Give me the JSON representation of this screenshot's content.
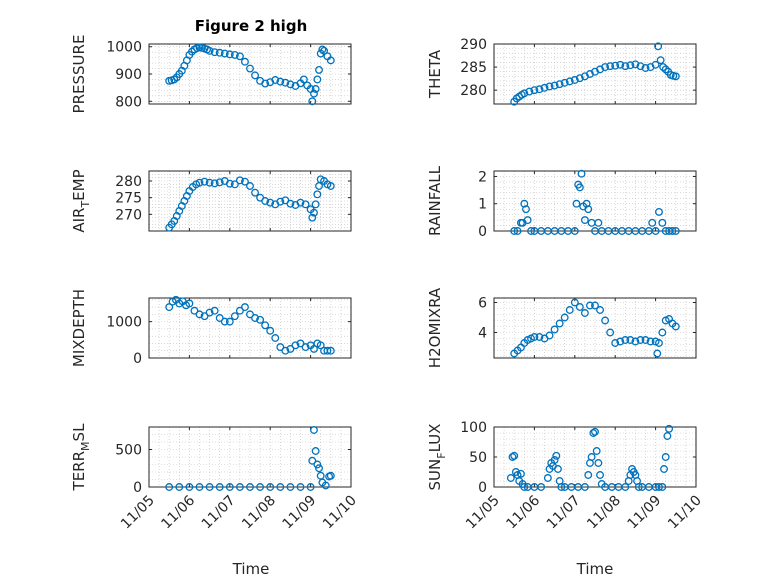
{
  "title": "Figure 2 high",
  "x_axis_label": "Time",
  "x_tick_labels": [
    "11/05",
    "11/06",
    "11/07",
    "11/08",
    "11/09",
    "11/10"
  ],
  "x_tick_days": [
    5,
    6,
    7,
    8,
    9,
    10
  ],
  "colors": {
    "marker": "#0072BD",
    "axis": "#262626",
    "grid": "#bfbfbf"
  },
  "chart_data": [
    {
      "type": "scatter",
      "id": "pressure",
      "ylabel": "PRESSURE",
      "xlim": [
        "11/05",
        "11/10"
      ],
      "ylim": [
        790,
        1010
      ],
      "yticks": [
        800,
        900,
        1000
      ],
      "grid": true,
      "x": [
        "11/05 12:00",
        "11/05 13:30",
        "11/05 15:00",
        "11/05 16:30",
        "11/05 18:00",
        "11/05 19:30",
        "11/05 21:00",
        "11/05 22:30",
        "11/06 00:00",
        "11/06 01:30",
        "11/06 03:00",
        "11/06 04:30",
        "11/06 06:00",
        "11/06 07:30",
        "11/06 09:00",
        "11/06 10:30",
        "11/06 12:00",
        "11/06 15:00",
        "11/06 18:00",
        "11/06 21:00",
        "11/07 00:00",
        "11/07 03:00",
        "11/07 06:00",
        "11/07 09:00",
        "11/07 12:00",
        "11/07 15:00",
        "11/07 18:00",
        "11/07 21:00",
        "11/08 00:00",
        "11/08 03:00",
        "11/08 06:00",
        "11/08 09:00",
        "11/08 12:00",
        "11/08 15:00",
        "11/08 18:00",
        "11/08 20:00",
        "11/08 22:00",
        "11/09 00:00",
        "11/09 01:00",
        "11/09 02:00",
        "11/09 03:00",
        "11/09 04:00",
        "11/09 05:00",
        "11/09 06:00",
        "11/09 07:00",
        "11/09 08:00",
        "11/09 10:00",
        "11/09 12:00"
      ],
      "y": [
        875,
        877,
        880,
        888,
        900,
        912,
        930,
        950,
        970,
        982,
        990,
        995,
        997,
        996,
        993,
        990,
        985,
        980,
        978,
        975,
        972,
        970,
        965,
        945,
        920,
        895,
        875,
        865,
        870,
        878,
        872,
        868,
        862,
        856,
        866,
        880,
        858,
        845,
        800,
        828,
        845,
        880,
        915,
        975,
        990,
        985,
        965,
        950
      ]
    },
    {
      "type": "scatter",
      "id": "theta",
      "ylabel": "THETA",
      "xlim": [
        "11/05",
        "11/10"
      ],
      "ylim": [
        277,
        290
      ],
      "yticks": [
        280,
        285,
        290
      ],
      "grid": true,
      "x": [
        "11/05 12:00",
        "11/05 13:30",
        "11/05 15:00",
        "11/05 16:30",
        "11/05 18:00",
        "11/05 21:00",
        "11/06 00:00",
        "11/06 03:00",
        "11/06 06:00",
        "11/06 09:00",
        "11/06 12:00",
        "11/06 15:00",
        "11/06 18:00",
        "11/06 21:00",
        "11/07 00:00",
        "11/07 03:00",
        "11/07 06:00",
        "11/07 09:00",
        "11/07 12:00",
        "11/07 15:00",
        "11/07 18:00",
        "11/07 21:00",
        "11/08 00:00",
        "11/08 03:00",
        "11/08 06:00",
        "11/08 09:00",
        "11/08 12:00",
        "11/08 15:00",
        "11/08 18:00",
        "11/08 21:00",
        "11/09 00:00",
        "11/09 01:30",
        "11/09 03:00",
        "11/09 04:30",
        "11/09 06:00",
        "11/09 07:30",
        "11/09 09:00",
        "11/09 10:30",
        "11/09 12:00"
      ],
      "y": [
        277.5,
        278.2,
        278.6,
        279.0,
        279.3,
        279.7,
        280.0,
        280.2,
        280.5,
        280.8,
        281.0,
        281.3,
        281.6,
        281.9,
        282.2,
        282.6,
        283.0,
        283.5,
        284.0,
        284.5,
        285.0,
        285.2,
        285.3,
        285.5,
        285.2,
        285.4,
        285.6,
        285.2,
        284.8,
        285.0,
        285.5,
        289.5,
        286.5,
        285.0,
        284.5,
        284.0,
        283.3,
        283.1,
        283.0
      ]
    },
    {
      "type": "scatter",
      "id": "air_temp",
      "ylabel": "AIR_TEMP",
      "xlim": [
        "11/05",
        "11/10"
      ],
      "ylim": [
        265,
        283
      ],
      "yticks": [
        270,
        275,
        280
      ],
      "grid": true,
      "x": [
        "11/05 12:00",
        "11/05 13:30",
        "11/05 15:00",
        "11/05 16:30",
        "11/05 18:00",
        "11/05 19:30",
        "11/05 21:00",
        "11/05 22:30",
        "11/06 00:00",
        "11/06 02:00",
        "11/06 04:00",
        "11/06 06:00",
        "11/06 09:00",
        "11/06 12:00",
        "11/06 15:00",
        "11/06 18:00",
        "11/06 21:00",
        "11/07 00:00",
        "11/07 03:00",
        "11/07 06:00",
        "11/07 09:00",
        "11/07 12:00",
        "11/07 15:00",
        "11/07 18:00",
        "11/07 21:00",
        "11/08 00:00",
        "11/08 03:00",
        "11/08 06:00",
        "11/08 09:00",
        "11/08 12:00",
        "11/08 15:00",
        "11/08 18:00",
        "11/08 21:00",
        "11/09 00:00",
        "11/09 01:00",
        "11/09 02:00",
        "11/09 03:00",
        "11/09 04:00",
        "11/09 05:00",
        "11/09 06:00",
        "11/09 08:00",
        "11/09 10:00",
        "11/09 12:00"
      ],
      "y": [
        266.0,
        267.0,
        268.0,
        269.5,
        271.0,
        272.5,
        274.0,
        275.5,
        277.0,
        278.2,
        279.0,
        279.5,
        279.8,
        279.5,
        279.3,
        279.6,
        280.0,
        279.2,
        279.0,
        280.2,
        279.8,
        278.5,
        276.5,
        275.0,
        274.0,
        273.5,
        273.0,
        273.8,
        274.2,
        273.2,
        272.8,
        273.5,
        273.0,
        271.5,
        269.0,
        270.5,
        273.0,
        276.0,
        278.5,
        280.5,
        280.0,
        279.0,
        278.5
      ]
    },
    {
      "type": "scatter",
      "id": "rainfall",
      "ylabel": "RAINFALL",
      "xlim": [
        "11/05",
        "11/10"
      ],
      "ylim": [
        0,
        2.2
      ],
      "yticks": [
        0,
        1,
        2
      ],
      "grid": true,
      "x": [
        "11/05 12:00",
        "11/05 14:00",
        "11/05 16:00",
        "11/05 17:00",
        "11/05 18:00",
        "11/05 19:00",
        "11/05 20:00",
        "11/05 22:00",
        "11/06 00:00",
        "11/06 04:00",
        "11/06 08:00",
        "11/06 12:00",
        "11/06 16:00",
        "11/06 20:00",
        "11/07 00:00",
        "11/07 01:00",
        "11/07 02:00",
        "11/07 03:00",
        "11/07 04:00",
        "11/07 05:00",
        "11/07 06:00",
        "11/07 07:00",
        "11/07 08:00",
        "11/07 10:00",
        "11/07 12:00",
        "11/07 14:00",
        "11/07 16:00",
        "11/07 20:00",
        "11/08 00:00",
        "11/08 04:00",
        "11/08 08:00",
        "11/08 12:00",
        "11/08 16:00",
        "11/08 20:00",
        "11/08 22:00",
        "11/09 00:00",
        "11/09 02:00",
        "11/09 04:00",
        "11/09 06:00",
        "11/09 08:00",
        "11/09 10:00",
        "11/09 12:00"
      ],
      "y": [
        0,
        0,
        0.3,
        0.3,
        1.0,
        0.8,
        0.4,
        0,
        0,
        0,
        0,
        0,
        0,
        0,
        0,
        1.0,
        1.7,
        1.6,
        2.1,
        0.9,
        0.4,
        1.0,
        0.8,
        0.3,
        0,
        0.3,
        0,
        0,
        0,
        0,
        0,
        0,
        0,
        0,
        0.3,
        0,
        0.7,
        0.3,
        0,
        0,
        0,
        0
      ]
    },
    {
      "type": "scatter",
      "id": "mixdepth",
      "ylabel": "MIXDEPTH",
      "xlim": [
        "11/05",
        "11/10"
      ],
      "ylim": [
        0,
        1650
      ],
      "yticks": [
        0,
        1000
      ],
      "grid": true,
      "x": [
        "11/05 12:00",
        "11/05 14:00",
        "11/05 16:00",
        "11/05 18:00",
        "11/05 20:00",
        "11/05 22:00",
        "11/06 00:00",
        "11/06 03:00",
        "11/06 06:00",
        "11/06 09:00",
        "11/06 12:00",
        "11/06 15:00",
        "11/06 18:00",
        "11/06 21:00",
        "11/07 00:00",
        "11/07 03:00",
        "11/07 06:00",
        "11/07 09:00",
        "11/07 12:00",
        "11/07 15:00",
        "11/07 18:00",
        "11/07 21:00",
        "11/08 00:00",
        "11/08 03:00",
        "11/08 06:00",
        "11/08 09:00",
        "11/08 12:00",
        "11/08 15:00",
        "11/08 18:00",
        "11/08 21:00",
        "11/09 00:00",
        "11/09 02:00",
        "11/09 04:00",
        "11/09 06:00",
        "11/09 08:00",
        "11/09 10:00",
        "11/09 12:00"
      ],
      "y": [
        1400,
        1550,
        1600,
        1500,
        1560,
        1450,
        1500,
        1300,
        1200,
        1150,
        1250,
        1300,
        1100,
        1000,
        1000,
        1150,
        1300,
        1400,
        1200,
        1100,
        1050,
        900,
        750,
        550,
        300,
        200,
        250,
        350,
        400,
        300,
        350,
        250,
        400,
        350,
        200,
        200,
        200
      ]
    },
    {
      "type": "scatter",
      "id": "h2omixra",
      "ylabel": "H2OMIXRA",
      "xlim": [
        "11/05",
        "11/10"
      ],
      "ylim": [
        2.3,
        6.3
      ],
      "yticks": [
        4,
        6
      ],
      "grid": true,
      "x": [
        "11/05 12:00",
        "11/05 14:00",
        "11/05 16:00",
        "11/05 18:00",
        "11/05 20:00",
        "11/05 22:00",
        "11/06 00:00",
        "11/06 03:00",
        "11/06 06:00",
        "11/06 09:00",
        "11/06 12:00",
        "11/06 15:00",
        "11/06 18:00",
        "11/06 21:00",
        "11/07 00:00",
        "11/07 03:00",
        "11/07 06:00",
        "11/07 09:00",
        "11/07 12:00",
        "11/07 15:00",
        "11/07 18:00",
        "11/07 21:00",
        "11/08 00:00",
        "11/08 03:00",
        "11/08 06:00",
        "11/08 09:00",
        "11/08 12:00",
        "11/08 15:00",
        "11/08 18:00",
        "11/08 21:00",
        "11/09 00:00",
        "11/09 01:00",
        "11/09 02:00",
        "11/09 04:00",
        "11/09 06:00",
        "11/09 08:00",
        "11/09 10:00",
        "11/09 12:00"
      ],
      "y": [
        2.6,
        2.8,
        3.0,
        3.3,
        3.5,
        3.6,
        3.7,
        3.7,
        3.6,
        3.8,
        4.2,
        4.6,
        5.0,
        5.5,
        6.0,
        5.7,
        5.3,
        5.8,
        5.8,
        5.5,
        4.8,
        4.0,
        3.3,
        3.4,
        3.5,
        3.5,
        3.4,
        3.5,
        3.5,
        3.4,
        3.4,
        2.6,
        3.3,
        4.0,
        4.8,
        4.9,
        4.6,
        4.4
      ]
    },
    {
      "type": "scatter",
      "id": "terr_msl",
      "ylabel": "TERR_MSL",
      "xlim": [
        "11/05",
        "11/10"
      ],
      "ylim": [
        0,
        800
      ],
      "yticks": [
        0,
        500
      ],
      "grid": true,
      "x": [
        "11/05 12:00",
        "11/05 18:00",
        "11/06 00:00",
        "11/06 06:00",
        "11/06 12:00",
        "11/06 18:00",
        "11/07 00:00",
        "11/07 06:00",
        "11/07 12:00",
        "11/07 18:00",
        "11/08 00:00",
        "11/08 06:00",
        "11/08 12:00",
        "11/08 18:00",
        "11/09 00:00",
        "11/09 01:00",
        "11/09 02:00",
        "11/09 03:00",
        "11/09 04:00",
        "11/09 05:00",
        "11/09 06:00",
        "11/09 07:00",
        "11/09 09:00",
        "11/09 11:00",
        "11/09 12:00"
      ],
      "y": [
        0,
        0,
        0,
        0,
        0,
        0,
        0,
        0,
        0,
        0,
        0,
        0,
        0,
        0,
        0,
        350,
        760,
        480,
        300,
        250,
        150,
        60,
        20,
        140,
        150
      ]
    },
    {
      "type": "scatter",
      "id": "sun_flux",
      "ylabel": "SUN_FLUX",
      "xlim": [
        "11/05",
        "11/10"
      ],
      "ylim": [
        0,
        100
      ],
      "yticks": [
        0,
        50,
        100
      ],
      "grid": true,
      "x": [
        "11/05 10:00",
        "11/05 11:00",
        "11/05 12:00",
        "11/05 13:00",
        "11/05 14:00",
        "11/05 15:00",
        "11/05 16:00",
        "11/05 17:00",
        "11/05 18:00",
        "11/05 20:00",
        "11/06 00:00",
        "11/06 04:00",
        "11/06 08:00",
        "11/06 09:00",
        "11/06 10:00",
        "11/06 11:00",
        "11/06 12:00",
        "11/06 13:00",
        "11/06 14:00",
        "11/06 15:00",
        "11/06 16:00",
        "11/06 18:00",
        "11/06 22:00",
        "11/07 02:00",
        "11/07 06:00",
        "11/07 08:00",
        "11/07 09:00",
        "11/07 10:00",
        "11/07 11:00",
        "11/07 12:00",
        "11/07 13:00",
        "11/07 14:00",
        "11/07 15:00",
        "11/07 16:00",
        "11/07 18:00",
        "11/07 22:00",
        "11/08 02:00",
        "11/08 06:00",
        "11/08 08:00",
        "11/08 09:00",
        "11/08 10:00",
        "11/08 11:00",
        "11/08 12:00",
        "11/08 13:00",
        "11/08 14:00",
        "11/08 16:00",
        "11/08 20:00",
        "11/09 00:00",
        "11/09 02:00",
        "11/09 04:00",
        "11/09 05:00",
        "11/09 06:00",
        "11/09 07:00",
        "11/09 08:00"
      ],
      "y": [
        15,
        50,
        52,
        25,
        20,
        10,
        22,
        5,
        0,
        0,
        0,
        0,
        15,
        30,
        40,
        35,
        45,
        52,
        30,
        10,
        0,
        0,
        0,
        0,
        0,
        20,
        40,
        50,
        90,
        92,
        60,
        40,
        20,
        5,
        0,
        0,
        0,
        0,
        10,
        20,
        30,
        25,
        20,
        10,
        0,
        0,
        0,
        0,
        0,
        0,
        30,
        50,
        85,
        97
      ]
    }
  ]
}
